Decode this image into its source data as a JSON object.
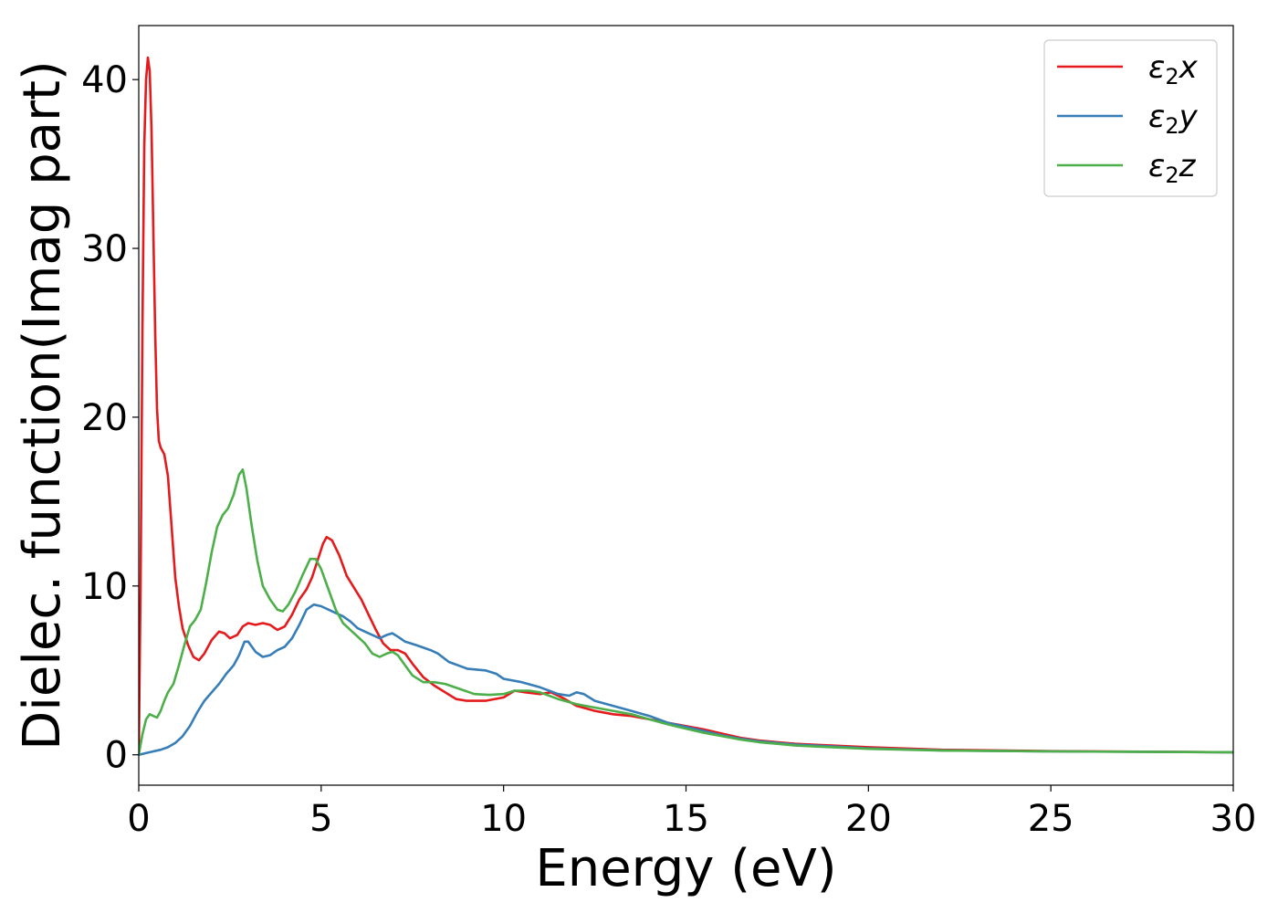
{
  "chart_data": {
    "type": "line",
    "title": "",
    "xlabel": "Energy (eV)",
    "ylabel": "Dielec. function(Imag part)",
    "xlim": [
      0,
      30
    ],
    "ylim": [
      -1.8,
      43.2
    ],
    "xticks": [
      0,
      5,
      10,
      15,
      20,
      25,
      30
    ],
    "yticks": [
      0,
      10,
      20,
      30,
      40
    ],
    "grid": false,
    "legend_position": "top-right",
    "series": [
      {
        "name": "ε₂x",
        "legend_base": "ε",
        "legend_sub": "2",
        "legend_suffix": "x",
        "color": "#e41a1c",
        "points": [
          [
            0,
            0
          ],
          [
            0.05,
            10
          ],
          [
            0.1,
            25
          ],
          [
            0.15,
            36
          ],
          [
            0.2,
            40
          ],
          [
            0.25,
            41.3
          ],
          [
            0.3,
            40.5
          ],
          [
            0.35,
            37
          ],
          [
            0.4,
            31
          ],
          [
            0.45,
            25
          ],
          [
            0.5,
            20.5
          ],
          [
            0.55,
            18.6
          ],
          [
            0.6,
            18.2
          ],
          [
            0.7,
            17.8
          ],
          [
            0.8,
            16.5
          ],
          [
            0.9,
            13.5
          ],
          [
            1.0,
            10.5
          ],
          [
            1.1,
            8.8
          ],
          [
            1.2,
            7.5
          ],
          [
            1.35,
            6.5
          ],
          [
            1.5,
            5.8
          ],
          [
            1.65,
            5.6
          ],
          [
            1.8,
            6.0
          ],
          [
            2.0,
            6.8
          ],
          [
            2.2,
            7.3
          ],
          [
            2.35,
            7.2
          ],
          [
            2.5,
            6.9
          ],
          [
            2.7,
            7.1
          ],
          [
            2.85,
            7.6
          ],
          [
            3.0,
            7.8
          ],
          [
            3.2,
            7.7
          ],
          [
            3.4,
            7.8
          ],
          [
            3.6,
            7.7
          ],
          [
            3.8,
            7.4
          ],
          [
            4.0,
            7.6
          ],
          [
            4.2,
            8.3
          ],
          [
            4.4,
            9.2
          ],
          [
            4.6,
            9.8
          ],
          [
            4.75,
            10.5
          ],
          [
            4.9,
            11.5
          ],
          [
            5.05,
            12.5
          ],
          [
            5.15,
            12.9
          ],
          [
            5.3,
            12.7
          ],
          [
            5.5,
            11.8
          ],
          [
            5.7,
            10.6
          ],
          [
            5.9,
            9.9
          ],
          [
            6.1,
            9.2
          ],
          [
            6.3,
            8.3
          ],
          [
            6.5,
            7.4
          ],
          [
            6.7,
            6.6
          ],
          [
            6.9,
            6.2
          ],
          [
            7.1,
            6.2
          ],
          [
            7.3,
            6.0
          ],
          [
            7.5,
            5.4
          ],
          [
            7.8,
            4.6
          ],
          [
            8.1,
            4.1
          ],
          [
            8.4,
            3.7
          ],
          [
            8.7,
            3.3
          ],
          [
            9.0,
            3.2
          ],
          [
            9.5,
            3.2
          ],
          [
            10.0,
            3.4
          ],
          [
            10.3,
            3.8
          ],
          [
            10.6,
            3.7
          ],
          [
            11.0,
            3.6
          ],
          [
            11.3,
            3.7
          ],
          [
            11.6,
            3.4
          ],
          [
            12.0,
            2.9
          ],
          [
            12.5,
            2.6
          ],
          [
            13.0,
            2.4
          ],
          [
            13.5,
            2.3
          ],
          [
            14.0,
            2.1
          ],
          [
            14.5,
            1.9
          ],
          [
            15.0,
            1.7
          ],
          [
            15.5,
            1.5
          ],
          [
            16.0,
            1.25
          ],
          [
            16.5,
            1.0
          ],
          [
            17.0,
            0.85
          ],
          [
            17.5,
            0.75
          ],
          [
            18.0,
            0.65
          ],
          [
            19.0,
            0.55
          ],
          [
            20.0,
            0.45
          ],
          [
            22.0,
            0.3
          ],
          [
            25.0,
            0.22
          ],
          [
            28.0,
            0.18
          ],
          [
            30.0,
            0.15
          ]
        ]
      },
      {
        "name": "ε₂y",
        "legend_base": "ε",
        "legend_sub": "2",
        "legend_suffix": "y",
        "color": "#377eb8",
        "points": [
          [
            0,
            0
          ],
          [
            0.3,
            0.15
          ],
          [
            0.6,
            0.3
          ],
          [
            0.8,
            0.45
          ],
          [
            1.0,
            0.7
          ],
          [
            1.2,
            1.1
          ],
          [
            1.4,
            1.7
          ],
          [
            1.6,
            2.5
          ],
          [
            1.8,
            3.2
          ],
          [
            2.0,
            3.7
          ],
          [
            2.2,
            4.2
          ],
          [
            2.4,
            4.8
          ],
          [
            2.6,
            5.3
          ],
          [
            2.75,
            5.9
          ],
          [
            2.9,
            6.7
          ],
          [
            3.0,
            6.7
          ],
          [
            3.2,
            6.1
          ],
          [
            3.4,
            5.8
          ],
          [
            3.6,
            5.9
          ],
          [
            3.8,
            6.2
          ],
          [
            4.0,
            6.4
          ],
          [
            4.2,
            6.9
          ],
          [
            4.4,
            7.7
          ],
          [
            4.6,
            8.6
          ],
          [
            4.8,
            8.9
          ],
          [
            5.0,
            8.8
          ],
          [
            5.2,
            8.6
          ],
          [
            5.4,
            8.4
          ],
          [
            5.6,
            8.2
          ],
          [
            5.8,
            7.9
          ],
          [
            6.0,
            7.5
          ],
          [
            6.2,
            7.3
          ],
          [
            6.4,
            7.1
          ],
          [
            6.6,
            6.9
          ],
          [
            6.8,
            7.1
          ],
          [
            6.95,
            7.2
          ],
          [
            7.1,
            7.0
          ],
          [
            7.3,
            6.7
          ],
          [
            7.6,
            6.5
          ],
          [
            8.0,
            6.2
          ],
          [
            8.2,
            6.0
          ],
          [
            8.5,
            5.5
          ],
          [
            9.0,
            5.1
          ],
          [
            9.5,
            5.0
          ],
          [
            9.8,
            4.8
          ],
          [
            10.0,
            4.5
          ],
          [
            10.5,
            4.3
          ],
          [
            11.0,
            4.0
          ],
          [
            11.5,
            3.6
          ],
          [
            11.8,
            3.5
          ],
          [
            12.0,
            3.7
          ],
          [
            12.2,
            3.6
          ],
          [
            12.5,
            3.2
          ],
          [
            13.0,
            2.9
          ],
          [
            13.5,
            2.6
          ],
          [
            14.0,
            2.3
          ],
          [
            14.5,
            1.9
          ],
          [
            15.0,
            1.65
          ],
          [
            15.5,
            1.4
          ],
          [
            16.0,
            1.15
          ],
          [
            16.5,
            0.95
          ],
          [
            17.0,
            0.8
          ],
          [
            17.5,
            0.7
          ],
          [
            18.0,
            0.6
          ],
          [
            19.0,
            0.5
          ],
          [
            20.0,
            0.38
          ],
          [
            22.0,
            0.26
          ],
          [
            25.0,
            0.2
          ],
          [
            28.0,
            0.17
          ],
          [
            30.0,
            0.15
          ]
        ]
      },
      {
        "name": "ε₂z",
        "legend_base": "ε",
        "legend_sub": "2",
        "legend_suffix": "z",
        "color": "#4daf4a",
        "points": [
          [
            0,
            0
          ],
          [
            0.1,
            1.2
          ],
          [
            0.2,
            2.1
          ],
          [
            0.3,
            2.4
          ],
          [
            0.4,
            2.3
          ],
          [
            0.5,
            2.2
          ],
          [
            0.6,
            2.6
          ],
          [
            0.7,
            3.2
          ],
          [
            0.8,
            3.7
          ],
          [
            0.95,
            4.2
          ],
          [
            1.1,
            5.3
          ],
          [
            1.25,
            6.5
          ],
          [
            1.4,
            7.6
          ],
          [
            1.55,
            8.0
          ],
          [
            1.7,
            8.6
          ],
          [
            1.85,
            10.2
          ],
          [
            2.0,
            12.0
          ],
          [
            2.15,
            13.5
          ],
          [
            2.3,
            14.2
          ],
          [
            2.45,
            14.6
          ],
          [
            2.6,
            15.4
          ],
          [
            2.75,
            16.6
          ],
          [
            2.85,
            16.9
          ],
          [
            2.95,
            15.8
          ],
          [
            3.1,
            13.5
          ],
          [
            3.25,
            11.5
          ],
          [
            3.4,
            10.0
          ],
          [
            3.6,
            9.2
          ],
          [
            3.8,
            8.6
          ],
          [
            3.95,
            8.5
          ],
          [
            4.1,
            8.9
          ],
          [
            4.3,
            9.7
          ],
          [
            4.5,
            10.7
          ],
          [
            4.7,
            11.6
          ],
          [
            4.85,
            11.6
          ],
          [
            5.0,
            11.0
          ],
          [
            5.2,
            9.8
          ],
          [
            5.4,
            8.6
          ],
          [
            5.6,
            7.8
          ],
          [
            5.8,
            7.4
          ],
          [
            6.0,
            7.0
          ],
          [
            6.2,
            6.6
          ],
          [
            6.4,
            6.0
          ],
          [
            6.6,
            5.8
          ],
          [
            6.8,
            6.0
          ],
          [
            6.95,
            6.1
          ],
          [
            7.1,
            5.9
          ],
          [
            7.3,
            5.3
          ],
          [
            7.5,
            4.7
          ],
          [
            7.8,
            4.3
          ],
          [
            8.1,
            4.3
          ],
          [
            8.4,
            4.2
          ],
          [
            8.8,
            3.9
          ],
          [
            9.2,
            3.6
          ],
          [
            9.6,
            3.55
          ],
          [
            10.0,
            3.6
          ],
          [
            10.3,
            3.8
          ],
          [
            10.7,
            3.8
          ],
          [
            11.0,
            3.7
          ],
          [
            11.5,
            3.3
          ],
          [
            12.0,
            3.0
          ],
          [
            12.5,
            2.8
          ],
          [
            13.0,
            2.6
          ],
          [
            13.5,
            2.4
          ],
          [
            14.0,
            2.1
          ],
          [
            14.5,
            1.8
          ],
          [
            15.0,
            1.55
          ],
          [
            15.5,
            1.3
          ],
          [
            16.0,
            1.1
          ],
          [
            16.5,
            0.9
          ],
          [
            17.0,
            0.75
          ],
          [
            17.5,
            0.65
          ],
          [
            18.0,
            0.55
          ],
          [
            19.0,
            0.45
          ],
          [
            20.0,
            0.35
          ],
          [
            22.0,
            0.25
          ],
          [
            25.0,
            0.2
          ],
          [
            28.0,
            0.17
          ],
          [
            30.0,
            0.15
          ]
        ]
      }
    ]
  }
}
